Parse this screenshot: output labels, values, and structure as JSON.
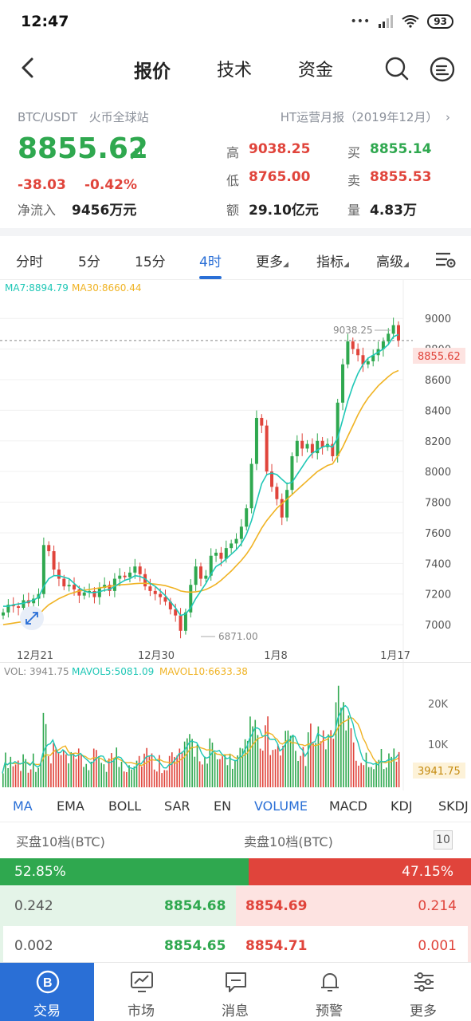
{
  "status": {
    "time": "12:47",
    "battery": "93"
  },
  "nav": {
    "tabs": [
      "报价",
      "技术",
      "资金"
    ],
    "active": 0
  },
  "header": {
    "pair": "BTC/USDT",
    "exchange": "火币全球站",
    "report": "HT运营月报（2019年12月）",
    "price": "8855.62",
    "change": "-38.03",
    "change_pct": "-0.42%",
    "netflow_label": "净流入",
    "netflow_value": "9456万元",
    "stats": [
      {
        "label": "高",
        "value": "9038.25",
        "color": "red"
      },
      {
        "label": "买",
        "value": "8855.14",
        "color": "green"
      },
      {
        "label": "低",
        "value": "8765.00",
        "color": "red"
      },
      {
        "label": "卖",
        "value": "8855.53",
        "color": "red"
      },
      {
        "label": "额",
        "value": "29.10亿元",
        "color": "black"
      },
      {
        "label": "量",
        "value": "4.83万",
        "color": "black"
      }
    ]
  },
  "intervals": [
    "分时",
    "5分",
    "15分",
    "4时",
    "更多",
    "指标",
    "高级"
  ],
  "active_interval": "4时",
  "chart_data": {
    "type": "candlestick",
    "ma_legend": {
      "ma7": "MA7:8894.79",
      "ma30": "MA30:8660.44"
    },
    "y_ticks": [
      "9000",
      "8800",
      "8600",
      "8400",
      "8200",
      "8000",
      "7800",
      "7600",
      "7400",
      "7200",
      "7000"
    ],
    "x_ticks": [
      "12月21",
      "12月30",
      "1月8",
      "1月17"
    ],
    "high_label": "9038.25",
    "low_label": "6871.00",
    "last_price": "8855.62",
    "ylim": [
      6860,
      9100
    ],
    "colors": {
      "up": "#2fa84f",
      "down": "#e0443b",
      "ma7": "#1fc7b6",
      "ma30": "#f0b324"
    },
    "closes": [
      7080,
      7130,
      7120,
      7110,
      7160,
      7140,
      7170,
      7200,
      7520,
      7480,
      7360,
      7300,
      7250,
      7260,
      7230,
      7190,
      7210,
      7220,
      7180,
      7240,
      7260,
      7220,
      7300,
      7320,
      7310,
      7340,
      7380,
      7330,
      7250,
      7220,
      7200,
      7180,
      7150,
      7100,
      7060,
      6960,
      7080,
      7260,
      7380,
      7300,
      7320,
      7450,
      7470,
      7430,
      7500,
      7530,
      7560,
      7640,
      7760,
      8050,
      8350,
      8300,
      8000,
      7900,
      7820,
      7700,
      7880,
      8100,
      8200,
      8150,
      8180,
      8120,
      8200,
      8160,
      8180,
      8100,
      8450,
      8700,
      8850,
      8800,
      8760,
      8700,
      8720,
      8760,
      8800,
      8850,
      8900,
      8956,
      8856
    ],
    "ma7": [
      7120,
      7120,
      7130,
      7135,
      7140,
      7150,
      7160,
      7180,
      7250,
      7300,
      7320,
      7320,
      7310,
      7300,
      7270,
      7240,
      7220,
      7210,
      7210,
      7215,
      7225,
      7230,
      7250,
      7270,
      7290,
      7300,
      7320,
      7315,
      7300,
      7270,
      7250,
      7220,
      7190,
      7150,
      7110,
      7060,
      7070,
      7110,
      7170,
      7220,
      7270,
      7330,
      7380,
      7400,
      7430,
      7460,
      7490,
      7530,
      7590,
      7680,
      7800,
      7920,
      7980,
      7990,
      7980,
      7950,
      7920,
      7930,
      7980,
      8030,
      8080,
      8120,
      8140,
      8160,
      8170,
      8160,
      8220,
      8340,
      8460,
      8560,
      8640,
      8700,
      8740,
      8760,
      8780,
      8800,
      8830,
      8880,
      8895
    ],
    "ma30": [
      7000,
      7005,
      7010,
      7015,
      7020,
      7030,
      7040,
      7060,
      7100,
      7130,
      7150,
      7170,
      7185,
      7200,
      7210,
      7220,
      7225,
      7230,
      7235,
      7240,
      7245,
      7250,
      7255,
      7260,
      7262,
      7265,
      7268,
      7270,
      7270,
      7268,
      7265,
      7260,
      7255,
      7245,
      7235,
      7220,
      7215,
      7212,
      7215,
      7220,
      7230,
      7245,
      7265,
      7290,
      7320,
      7350,
      7385,
      7420,
      7460,
      7510,
      7570,
      7630,
      7680,
      7720,
      7760,
      7790,
      7820,
      7850,
      7880,
      7910,
      7940,
      7970,
      8000,
      8020,
      8040,
      8050,
      8100,
      8160,
      8230,
      8300,
      8370,
      8430,
      8480,
      8520,
      8560,
      8590,
      8620,
      8645,
      8660
    ]
  },
  "volume": {
    "legend": {
      "vol": "VOL: 3941.75",
      "mavol5": "MAVOL5:5081.09",
      "mavol10": "MAVOL10:6633.38"
    },
    "y_ticks": [
      "20K",
      "10K"
    ],
    "last": "3941.75",
    "ylim": [
      0,
      28000
    ]
  },
  "indicators": [
    "MA",
    "EMA",
    "BOLL",
    "SAR",
    "EN",
    "VOLUME",
    "MACD",
    "KDJ",
    "SKDJ"
  ],
  "active_indicators": [
    "MA",
    "VOLUME"
  ],
  "orderbook": {
    "buy_title": "买盘10档(BTC)",
    "sell_title": "卖盘10档(BTC)",
    "depth_btn": "10",
    "buy_pct": "52.85%",
    "sell_pct": "47.15%",
    "rows": [
      {
        "buy_qty": "0.242",
        "buy_price": "8854.68",
        "sell_price": "8854.69",
        "sell_qty": "0.214"
      },
      {
        "buy_qty": "0.002",
        "buy_price": "8854.65",
        "sell_price": "8854.71",
        "sell_qty": "0.001"
      }
    ]
  },
  "bottom_nav": [
    "交易",
    "市场",
    "消息",
    "预警",
    "更多"
  ],
  "bottom_active": "交易"
}
